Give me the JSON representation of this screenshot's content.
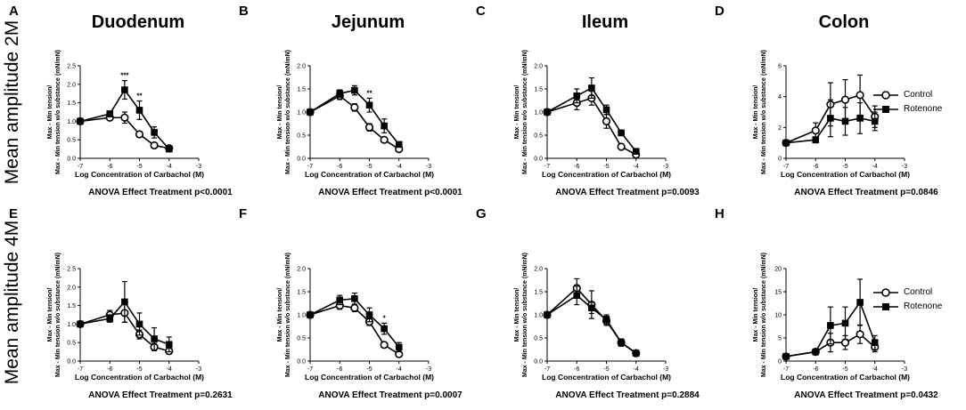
{
  "row_labels": [
    "Mean amplitude 2M",
    "Mean amplitude 4M"
  ],
  "legend": {
    "control": "Control",
    "rotenone": "Rotenone"
  },
  "shared": {
    "xlabel": "Log Concentration of Carbachol (M)",
    "ylabel_line1": "Max - Min tension/",
    "ylabel_line2": "Max - Min tension w/o substance (mN/mN)",
    "xticks": [
      -7,
      -6,
      -5,
      -4,
      -3
    ],
    "xlim": [
      -7,
      -3
    ],
    "x": [
      -7,
      -6,
      -5.5,
      -5,
      -4.5,
      -4
    ]
  },
  "panels": [
    {
      "letter": "A",
      "title": "Duodenum",
      "anova": "ANOVA Effect Treatment p<0.0001",
      "ylim": [
        0,
        2.5
      ],
      "yticks": [
        0,
        0.5,
        1.0,
        1.5,
        2.0,
        2.5
      ],
      "ytick_labels": [
        "0.0",
        "0.5",
        "1.0",
        "1.5",
        "2.0",
        "2.5"
      ]
    },
    {
      "letter": "B",
      "title": "Jejunum",
      "anova": "ANOVA Effect Treatment p<0.0001",
      "ylim": [
        0,
        2.0
      ],
      "yticks": [
        0,
        0.5,
        1.0,
        1.5,
        2.0
      ],
      "ytick_labels": [
        "0.0",
        "0.5",
        "1.0",
        "1.5",
        "2.0"
      ]
    },
    {
      "letter": "C",
      "title": "Ileum",
      "anova": "ANOVA Effect Treatment p=0.0093",
      "ylim": [
        0,
        2.0
      ],
      "yticks": [
        0,
        0.5,
        1.0,
        1.5,
        2.0
      ],
      "ytick_labels": [
        "0.0",
        "0.5",
        "1.0",
        "1.5",
        "2.0"
      ]
    },
    {
      "letter": "D",
      "title": "Colon",
      "anova": "ANOVA Effect Treatment p=0.0846",
      "ylim": [
        0,
        6
      ],
      "yticks": [
        0,
        2,
        4,
        6
      ],
      "ytick_labels": [
        "0",
        "2",
        "4",
        "6"
      ]
    },
    {
      "letter": "E",
      "title": "",
      "anova": "ANOVA Effect Treatment p=0.2631",
      "ylim": [
        0,
        2.5
      ],
      "yticks": [
        0,
        0.5,
        1.0,
        1.5,
        2.0,
        2.5
      ],
      "ytick_labels": [
        "0.0",
        "0.5",
        "1.0",
        "1.5",
        "2.0",
        "2.5"
      ]
    },
    {
      "letter": "F",
      "title": "",
      "anova": "ANOVA Effect Treatment p=0.0007",
      "ylim": [
        0,
        2.0
      ],
      "yticks": [
        0,
        0.5,
        1.0,
        1.5,
        2.0
      ],
      "ytick_labels": [
        "0.0",
        "0.5",
        "1.0",
        "1.5",
        "2.0"
      ]
    },
    {
      "letter": "G",
      "title": "",
      "anova": "ANOVA Effect Treatment p=0.2884",
      "ylim": [
        0,
        2.0
      ],
      "yticks": [
        0,
        0.5,
        1.0,
        1.5,
        2.0
      ],
      "ytick_labels": [
        "0.0",
        "0.5",
        "1.0",
        "1.5",
        "2.0"
      ]
    },
    {
      "letter": "H",
      "title": "",
      "anova": "ANOVA Effect Treatment p=0.0432",
      "ylim": [
        0,
        20
      ],
      "yticks": [
        0,
        5,
        10,
        15,
        20
      ],
      "ytick_labels": [
        "0",
        "5",
        "10",
        "15",
        "20"
      ]
    }
  ],
  "chart_data": [
    {
      "type": "line",
      "panel": "A",
      "title": "Duodenum",
      "xlabel": "Log Concentration of Carbachol (M)",
      "ylabel": "Max - Min tension/ Max - Min tension w/o substance (mN/mN)",
      "ylim": [
        0,
        2.5
      ],
      "x": [
        -7,
        -6,
        -5.5,
        -5,
        -4.5,
        -4
      ],
      "series": [
        {
          "name": "Control",
          "values": [
            1.0,
            1.1,
            1.1,
            0.65,
            0.35,
            0.27
          ],
          "errors": [
            0.05,
            0.05,
            0.15,
            0.08,
            0.05,
            0.05
          ]
        },
        {
          "name": "Rotenone",
          "values": [
            1.0,
            1.2,
            1.85,
            1.3,
            0.7,
            0.25
          ],
          "errors": [
            0.05,
            0.08,
            0.25,
            0.25,
            0.15,
            0.05
          ]
        }
      ],
      "annotations": [
        {
          "x": -5.5,
          "text": "***"
        },
        {
          "x": -5,
          "text": "**"
        }
      ]
    },
    {
      "type": "line",
      "panel": "B",
      "title": "Jejunum",
      "xlabel": "Log Concentration of Carbachol (M)",
      "ylabel": "Max - Min tension/ Max - Min tension w/o substance (mN/mN)",
      "ylim": [
        0,
        2.0
      ],
      "x": [
        -7,
        -6,
        -5.5,
        -5,
        -4.5,
        -4
      ],
      "series": [
        {
          "name": "Control",
          "values": [
            1.0,
            1.35,
            1.1,
            0.67,
            0.4,
            0.2
          ],
          "errors": [
            0.03,
            0.08,
            0.08,
            0.08,
            0.05,
            0.04
          ]
        },
        {
          "name": "Rotenone",
          "values": [
            1.0,
            1.4,
            1.47,
            1.15,
            0.7,
            0.3
          ],
          "errors": [
            0.03,
            0.08,
            0.1,
            0.15,
            0.15,
            0.05
          ]
        }
      ],
      "annotations": [
        {
          "x": -5,
          "text": "**"
        }
      ]
    },
    {
      "type": "line",
      "panel": "C",
      "title": "Ileum",
      "xlabel": "Log Concentration of Carbachol (M)",
      "ylabel": "Max - Min tension/ Max - Min tension w/o substance (mN/mN)",
      "ylim": [
        0,
        2.0
      ],
      "x": [
        -7,
        -6,
        -5.5,
        -5,
        -4.5,
        -4
      ],
      "series": [
        {
          "name": "Control",
          "values": [
            1.0,
            1.2,
            1.3,
            0.8,
            0.25,
            0.08
          ],
          "errors": [
            0.03,
            0.15,
            0.15,
            0.15,
            0.05,
            0.03
          ]
        },
        {
          "name": "Rotenone",
          "values": [
            1.0,
            1.35,
            1.52,
            1.05,
            0.55,
            0.15
          ],
          "errors": [
            0.03,
            0.15,
            0.22,
            0.1,
            0.05,
            0.03
          ]
        }
      ]
    },
    {
      "type": "line",
      "panel": "D",
      "title": "Colon",
      "xlabel": "Log Concentration of Carbachol (M)",
      "ylabel": "Max - Min tension/ Max - Min tension w/o substance (mN/mN)",
      "ylim": [
        0,
        6
      ],
      "x": [
        -7,
        -6,
        -5.5,
        -5,
        -4.5,
        -4
      ],
      "series": [
        {
          "name": "Control",
          "values": [
            1.0,
            1.8,
            3.5,
            3.8,
            4.1,
            2.7
          ],
          "errors": [
            0.05,
            0.5,
            1.4,
            1.3,
            1.3,
            0.7
          ]
        },
        {
          "name": "Rotenone",
          "values": [
            1.0,
            1.2,
            2.6,
            2.4,
            2.6,
            2.4
          ],
          "errors": [
            0.05,
            0.2,
            1.2,
            0.9,
            1.0,
            0.6
          ]
        }
      ]
    },
    {
      "type": "line",
      "panel": "E",
      "title": "",
      "xlabel": "Log Concentration of Carbachol (M)",
      "ylabel": "Max - Min tension/ Max - Min tension w/o substance (mN/mN)",
      "ylim": [
        0,
        2.5
      ],
      "x": [
        -7,
        -6,
        -5.5,
        -5,
        -4.5,
        -4
      ],
      "series": [
        {
          "name": "Control",
          "values": [
            1.0,
            1.25,
            1.3,
            0.72,
            0.38,
            0.27
          ],
          "errors": [
            0.03,
            0.12,
            0.25,
            0.12,
            0.1,
            0.08
          ]
        },
        {
          "name": "Rotenone",
          "values": [
            1.0,
            1.15,
            1.6,
            1.0,
            0.6,
            0.45
          ],
          "errors": [
            0.03,
            0.1,
            0.55,
            0.3,
            0.3,
            0.2
          ]
        }
      ]
    },
    {
      "type": "line",
      "panel": "F",
      "title": "",
      "xlabel": "Log Concentration of Carbachol (M)",
      "ylabel": "Max - Min tension/ Max - Min tension w/o substance (mN/mN)",
      "ylim": [
        0,
        2.0
      ],
      "x": [
        -7,
        -6,
        -5.5,
        -5,
        -4.5,
        -4
      ],
      "series": [
        {
          "name": "Control",
          "values": [
            1.0,
            1.2,
            1.15,
            0.85,
            0.35,
            0.15
          ],
          "errors": [
            0.03,
            0.08,
            0.08,
            0.08,
            0.05,
            0.04
          ]
        },
        {
          "name": "Rotenone",
          "values": [
            1.0,
            1.32,
            1.35,
            1.0,
            0.7,
            0.3
          ],
          "errors": [
            0.03,
            0.1,
            0.12,
            0.15,
            0.12,
            0.1
          ]
        }
      ],
      "annotations": [
        {
          "x": -4.5,
          "text": "*"
        }
      ]
    },
    {
      "type": "line",
      "panel": "G",
      "title": "",
      "xlabel": "Log Concentration of Carbachol (M)",
      "ylabel": "Max - Min tension/ Max - Min tension w/o substance (mN/mN)",
      "ylim": [
        0,
        2.0
      ],
      "x": [
        -7,
        -6,
        -5.5,
        -5,
        -4.5,
        -4
      ],
      "series": [
        {
          "name": "Control",
          "values": [
            1.0,
            1.58,
            1.22,
            0.87,
            0.4,
            0.17
          ],
          "errors": [
            0.03,
            0.2,
            0.3,
            0.1,
            0.05,
            0.03
          ]
        },
        {
          "name": "Rotenone",
          "values": [
            1.0,
            1.42,
            1.15,
            0.9,
            0.4,
            0.17
          ],
          "errors": [
            0.03,
            0.2,
            0.12,
            0.1,
            0.08,
            0.03
          ]
        }
      ]
    },
    {
      "type": "line",
      "panel": "H",
      "title": "",
      "xlabel": "Log Concentration of Carbachol (M)",
      "ylabel": "Max - Min tension/ Max - Min tension w/o substance (mN/mN)",
      "ylim": [
        0,
        20
      ],
      "x": [
        -7,
        -6,
        -5.5,
        -5,
        -4.5,
        -4
      ],
      "series": [
        {
          "name": "Control",
          "values": [
            1.0,
            2.0,
            4.0,
            4.0,
            5.8,
            3.0
          ],
          "errors": [
            0.1,
            0.4,
            2.0,
            1.5,
            2.0,
            1.0
          ]
        },
        {
          "name": "Rotenone",
          "values": [
            1.0,
            2.0,
            7.7,
            8.2,
            12.7,
            4.0
          ],
          "errors": [
            0.1,
            0.5,
            4.0,
            3.5,
            5.0,
            1.5
          ]
        }
      ]
    }
  ]
}
